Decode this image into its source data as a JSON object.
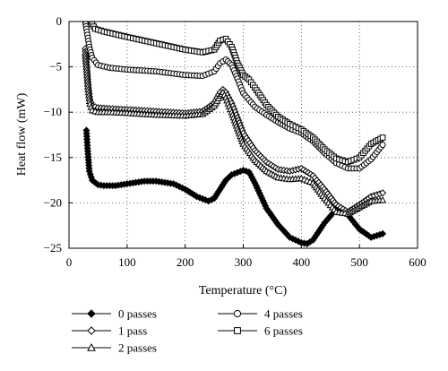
{
  "chart_data": {
    "type": "line",
    "xlabel": "Temperature (°C)",
    "ylabel": "Heat flow (mW)",
    "xlim": [
      0,
      600
    ],
    "ylim": [
      -25,
      0
    ],
    "xticks": [
      0,
      100,
      200,
      300,
      400,
      500,
      600
    ],
    "yticks": [
      0,
      -5,
      -10,
      -15,
      -20,
      -25
    ],
    "grid": "dotted",
    "legend_position": "bottom",
    "series": [
      {
        "name": "0 passes",
        "marker": "diamond-filled",
        "x": [
          30,
          32,
          35,
          40,
          50,
          60,
          80,
          100,
          130,
          150,
          180,
          200,
          220,
          240,
          250,
          260,
          270,
          280,
          300,
          310,
          320,
          340,
          360,
          380,
          400,
          410,
          420,
          440,
          460,
          480,
          500,
          520,
          540
        ],
        "y": [
          -12,
          -14,
          -16.5,
          -17.5,
          -18,
          -18.1,
          -18.1,
          -17.9,
          -17.6,
          -17.6,
          -17.9,
          -18.5,
          -19.3,
          -19.8,
          -19.5,
          -18.5,
          -17.5,
          -16.9,
          -16.4,
          -16.6,
          -17.8,
          -20.6,
          -22.4,
          -23.8,
          -24.4,
          -24.5,
          -24.1,
          -22.2,
          -20.7,
          -21.3,
          -22.9,
          -23.8,
          -23.4
        ]
      },
      {
        "name": "1 pass",
        "marker": "diamond-open",
        "x": [
          28,
          30,
          33,
          36,
          40,
          50,
          70,
          100,
          150,
          200,
          230,
          250,
          260,
          265,
          270,
          280,
          290,
          300,
          320,
          340,
          360,
          380,
          400,
          420,
          440,
          460,
          480,
          500,
          520,
          540
        ],
        "y": [
          -3,
          -4.5,
          -7,
          -8.6,
          -9.3,
          -9.5,
          -9.6,
          -9.7,
          -9.9,
          -10.1,
          -9.9,
          -9,
          -7.8,
          -7.5,
          -7.8,
          -9,
          -10.6,
          -12.3,
          -14.2,
          -15.5,
          -16.3,
          -16.5,
          -16.2,
          -17,
          -18.5,
          -20.2,
          -21,
          -20.2,
          -19.3,
          -18.9
        ]
      },
      {
        "name": "2 passes",
        "marker": "triangle-open",
        "x": [
          28,
          30,
          33,
          36,
          40,
          50,
          70,
          100,
          150,
          200,
          230,
          250,
          260,
          265,
          270,
          280,
          290,
          300,
          320,
          340,
          360,
          380,
          400,
          420,
          440,
          460,
          480,
          500,
          520,
          540
        ],
        "y": [
          -3.5,
          -5,
          -7.5,
          -9.1,
          -9.8,
          -10,
          -10,
          -10.1,
          -10.3,
          -10.4,
          -10.2,
          -9.3,
          -8.2,
          -7.8,
          -8.4,
          -10,
          -11.8,
          -13.5,
          -15.3,
          -16.5,
          -17.2,
          -17.4,
          -17.3,
          -17.8,
          -19.5,
          -21,
          -21.2,
          -20.5,
          -19.8,
          -19.7
        ]
      },
      {
        "name": "4 passes",
        "marker": "circle-open",
        "x": [
          28,
          30,
          35,
          40,
          50,
          70,
          100,
          150,
          200,
          230,
          250,
          260,
          270,
          280,
          290,
          300,
          320,
          340,
          360,
          380,
          400,
          420,
          440,
          460,
          480,
          500,
          520,
          540
        ],
        "y": [
          0,
          -0.8,
          -2.8,
          -4,
          -4.8,
          -5.1,
          -5.3,
          -5.5,
          -5.9,
          -6,
          -5.5,
          -4.6,
          -4.2,
          -4.8,
          -6.3,
          -7.9,
          -9.4,
          -10.3,
          -11.1,
          -11.8,
          -12.3,
          -13.2,
          -14.5,
          -15.6,
          -16.2,
          -16.2,
          -15.2,
          -13.6
        ]
      },
      {
        "name": "6 passes",
        "marker": "square-open",
        "x": [
          38,
          40,
          45,
          50,
          60,
          80,
          100,
          150,
          200,
          230,
          250,
          260,
          270,
          280,
          290,
          300,
          310,
          320,
          340,
          360,
          380,
          400,
          420,
          440,
          460,
          480,
          500,
          520,
          540
        ],
        "y": [
          0,
          -0.3,
          -0.8,
          -0.9,
          -1.1,
          -1.4,
          -1.7,
          -2.4,
          -3.1,
          -3.4,
          -3.1,
          -2.1,
          -1.9,
          -2.8,
          -4.6,
          -5.9,
          -6.4,
          -7.3,
          -9.2,
          -10.5,
          -11.3,
          -11.9,
          -12.8,
          -14.1,
          -15.1,
          -15.5,
          -15,
          -13.5,
          -12.8
        ]
      }
    ]
  }
}
